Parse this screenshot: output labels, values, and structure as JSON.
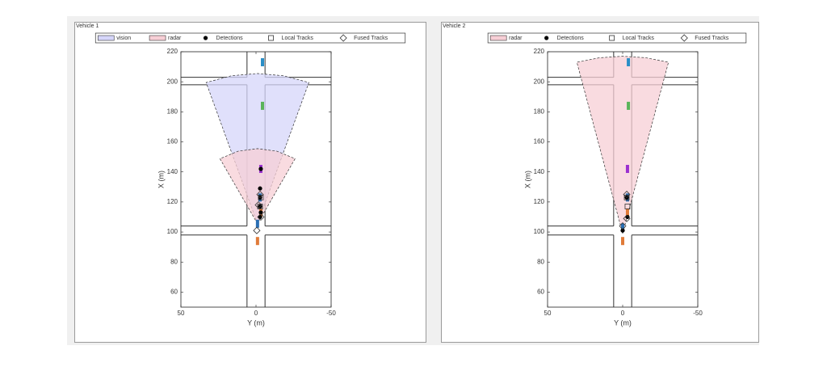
{
  "chart_data": [
    {
      "type": "scatter",
      "title": "Vehicle 1",
      "xlabel": "Y (m)",
      "ylabel": "X (m)",
      "xlim": [
        50,
        -50
      ],
      "ylim": [
        50,
        220
      ],
      "xticks": [
        50,
        0,
        -50
      ],
      "yticks": [
        60,
        80,
        100,
        120,
        140,
        160,
        180,
        200,
        220
      ],
      "legend_position": "top",
      "series": [
        {
          "kind": "line",
          "color": "#333333",
          "x": [
            50,
            6,
            null,
            -6,
            -50,
            null,
            50,
            6,
            null,
            -6,
            -50,
            null,
            50,
            6,
            null,
            -6,
            -50,
            null,
            50,
            6,
            null,
            -6,
            -50,
            null,
            6,
            6,
            null,
            6,
            6,
            null,
            6,
            6,
            null,
            -6,
            -6,
            null,
            -6,
            -6,
            null,
            -6,
            -6
          ],
          "values": [
            98,
            98,
            null,
            98,
            98,
            null,
            104,
            104,
            null,
            104,
            104,
            null,
            198,
            198,
            null,
            198,
            198,
            null,
            203,
            203,
            null,
            203,
            203,
            null,
            50,
            98,
            null,
            104,
            198,
            null,
            203,
            220,
            null,
            50,
            98,
            null,
            104,
            198,
            null,
            203,
            220
          ]
        },
        {
          "name": "vision",
          "kind": "area",
          "color": "#d6d6fa",
          "x": [
            -1,
            33.2,
            16.4,
            -1,
            -18.4,
            -35.2
          ],
          "values": [
            105.5,
            199.5,
            204,
            205.5,
            204,
            199.5
          ]
        },
        {
          "name": "radar",
          "kind": "area",
          "color": "#f7cfd6",
          "x": [
            -1,
            24,
            11.9,
            -1,
            -13.9,
            -26
          ],
          "values": [
            105.5,
            148.8,
            153.8,
            155.5,
            153.8,
            148.8
          ]
        },
        {
          "kind": "rect",
          "colors": [
            "#2a8fc7",
            "#5ab45a",
            "#9b30d0",
            "#2a6fb4",
            "#e07b39",
            "#2a6fb4",
            "#e07b39"
          ],
          "x": [
            -4.3,
            -4.3,
            -3.2,
            -2.7,
            -3.2,
            -1,
            -1
          ],
          "values": [
            213,
            184,
            142,
            123,
            113,
            105.5,
            94
          ]
        },
        {
          "name": "Detections",
          "kind": "circle",
          "color": "#000000",
          "x": [
            -3.2,
            -2.7,
            -2.7,
            -2.7,
            -3.2,
            -2.7
          ],
          "values": [
            142,
            129,
            123,
            117,
            113,
            110
          ]
        },
        {
          "name": "Local Tracks",
          "kind": "square",
          "color": "#333333",
          "x": [
            -3.2,
            -2.7
          ],
          "values": [
            123,
            117
          ]
        },
        {
          "name": "Fused Tracks",
          "kind": "diamond",
          "color": "#333333",
          "x": [
            -2.7,
            -1.6,
            -3.2,
            -0.5
          ],
          "values": [
            125,
            118,
            110,
            101
          ]
        }
      ]
    },
    {
      "type": "scatter",
      "title": "Vehicle 2",
      "xlabel": "Y (m)",
      "ylabel": "X (m)",
      "xlim": [
        50,
        -50
      ],
      "ylim": [
        50,
        220
      ],
      "xticks": [
        50,
        0,
        -50
      ],
      "yticks": [
        60,
        80,
        100,
        120,
        140,
        160,
        180,
        200,
        220
      ],
      "legend_position": "top",
      "series": [
        {
          "kind": "line",
          "color": "#333333",
          "x": [
            50,
            6,
            null,
            -6,
            -50,
            null,
            50,
            6,
            null,
            -6,
            -50,
            null,
            50,
            6,
            null,
            -6,
            -50,
            null,
            50,
            6,
            null,
            -6,
            -50,
            null,
            6,
            6,
            null,
            6,
            6,
            null,
            6,
            6,
            null,
            -6,
            -6,
            null,
            -6,
            -6,
            null,
            -6,
            -6
          ],
          "values": [
            98,
            98,
            null,
            98,
            98,
            null,
            104,
            104,
            null,
            104,
            104,
            null,
            198,
            198,
            null,
            198,
            198,
            null,
            203,
            203,
            null,
            203,
            203,
            null,
            50,
            98,
            null,
            104,
            198,
            null,
            203,
            220,
            null,
            50,
            98,
            null,
            104,
            198,
            null,
            203,
            220
          ]
        },
        {
          "name": "radar",
          "kind": "area",
          "color": "#f7cfd6",
          "x": [
            0,
            30.5,
            15.4,
            0,
            -15.4,
            -30.5
          ],
          "values": [
            99,
            213,
            216,
            217,
            216,
            213
          ]
        },
        {
          "kind": "rect",
          "colors": [
            "#2a8fc7",
            "#5ab45a",
            "#9b30d0",
            "#2a6fb4",
            "#e07b39",
            "#2a6fb4",
            "#e07b39"
          ],
          "x": [
            -3.8,
            -3.8,
            -3.2,
            -3.2,
            -3.2,
            0,
            0
          ],
          "values": [
            213,
            184,
            142,
            123,
            113,
            103,
            94
          ]
        },
        {
          "name": "Detections",
          "kind": "circle",
          "color": "#000000",
          "x": [
            -2.7,
            -3.2,
            0
          ],
          "values": [
            123,
            110,
            101
          ]
        },
        {
          "name": "Local Tracks",
          "kind": "square",
          "color": "#333333",
          "x": [
            -2.7,
            -3.2
          ],
          "values": [
            123,
            117
          ]
        },
        {
          "name": "Fused Tracks",
          "kind": "diamond",
          "color": "#333333",
          "x": [
            -2.7,
            -2.7,
            0
          ],
          "values": [
            125,
            109,
            104
          ]
        }
      ]
    }
  ]
}
